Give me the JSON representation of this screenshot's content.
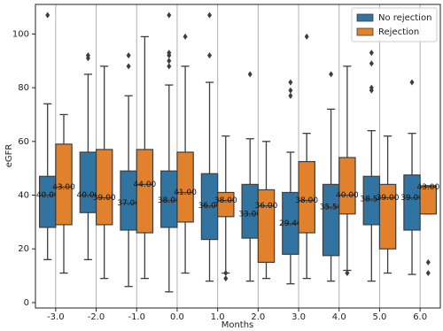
{
  "chart_data": {
    "type": "box",
    "x_label": "Months",
    "y_label": "eGFR",
    "categories": [
      "-3.0",
      "-2.0",
      "-1.0",
      "0.0",
      "1.0",
      "2.0",
      "3.0",
      "4.0",
      "5.0",
      "6.0"
    ],
    "ylim": [
      -2,
      111
    ],
    "yticks": [
      0,
      20,
      40,
      60,
      80,
      100
    ],
    "grid": "x",
    "legend": "upper right",
    "series": [
      {
        "name": "No rejection",
        "color": "#3274a1",
        "whislo": [
          16,
          16,
          6,
          4,
          8,
          8,
          7,
          8,
          8,
          10.5
        ],
        "q1": [
          28,
          33.5,
          27,
          28,
          23.5,
          24,
          18,
          17.5,
          29,
          27
        ],
        "values": [
          40,
          40,
          37,
          38,
          36,
          33,
          29.4,
          35.5,
          38.5,
          39
        ],
        "value_labels": [
          "40.00",
          "40.00",
          "37.00",
          "38.00",
          "36.00",
          "33.00",
          "29.40",
          "35.50",
          "38.50",
          "39.00"
        ],
        "q3": [
          47,
          56,
          49,
          49,
          48,
          44,
          41,
          44,
          47,
          47.5
        ],
        "whishi": [
          74,
          85,
          77,
          81,
          82,
          61,
          56,
          72,
          64,
          63
        ],
        "fliers": [
          [
            107
          ],
          [
            92,
            91
          ],
          [
            92,
            88
          ],
          [
            107,
            93,
            92,
            90,
            88
          ],
          [
            107,
            92
          ],
          [
            85
          ],
          [
            82,
            79,
            77
          ],
          [
            85
          ],
          [
            93,
            89,
            80,
            79
          ],
          [
            82
          ]
        ]
      },
      {
        "name": "Rejection",
        "color": "#e1812c",
        "whislo": [
          11,
          9,
          9,
          11,
          11,
          9,
          9,
          12,
          11,
          33
        ],
        "q1": [
          29,
          29,
          26,
          30,
          32,
          15,
          26,
          33,
          20,
          33
        ],
        "values": [
          43,
          39,
          44,
          41,
          38,
          36,
          38,
          40,
          39,
          43
        ],
        "value_labels": [
          "43.00",
          "39.00",
          "44.00",
          "41.00",
          "38.00",
          "36.00",
          "38.00",
          "40.00",
          "39.00",
          "43.00"
        ],
        "q3": [
          59,
          57,
          57,
          56,
          41,
          42,
          52.5,
          54,
          44,
          43.5
        ],
        "whishi": [
          70,
          88,
          99,
          88,
          62,
          60,
          63,
          88,
          62,
          43.5
        ],
        "fliers": [
          [],
          [],
          [],
          [
            99
          ],
          [
            11,
            9
          ],
          [],
          [
            99
          ],
          [
            11
          ],
          [],
          [
            15,
            11
          ]
        ]
      }
    ]
  }
}
